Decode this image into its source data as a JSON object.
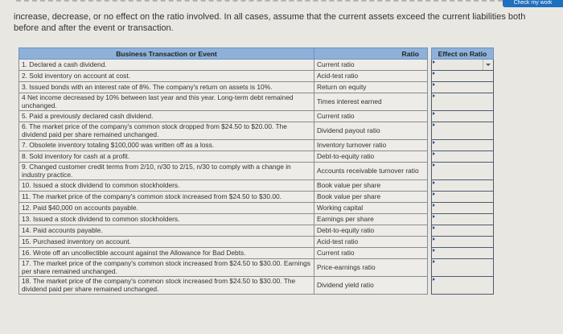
{
  "instructions": {
    "text": "increase, decrease, or no effect on the ratio involved. In all cases, assume that the current assets exceed the current liabilities both before and after the event or transaction."
  },
  "top_button": {
    "label": "Check my work"
  },
  "table": {
    "headers": {
      "event": "Business Transaction or Event",
      "ratio": "Ratio",
      "effect": "Effect on Ratio"
    },
    "rows": [
      {
        "event": "1. Declared a cash dividend.",
        "ratio": "Current ratio",
        "effect": "",
        "tall": false
      },
      {
        "event": "2. Sold inventory on account at cost.",
        "ratio": "Acid-test ratio",
        "effect": "",
        "tall": false
      },
      {
        "event": "3. Issued bonds with an interest rate of 8%. The company's return on assets is 10%.",
        "ratio": "Return on equity",
        "effect": "",
        "tall": false
      },
      {
        "event": "4 Net income decreased by 10% between last year and this year. Long-term debt remained unchanged.",
        "ratio": "Times interest earned",
        "effect": "",
        "tall": true
      },
      {
        "event": "5. Paid a previously declared cash dividend.",
        "ratio": "Current ratio",
        "effect": "",
        "tall": false
      },
      {
        "event": "6. The market price of the company's common stock dropped from $24.50 to $20.00. The dividend paid per share remained unchanged.",
        "ratio": "Dividend payout ratio",
        "effect": "",
        "tall": true
      },
      {
        "event": "7. Obsolete inventory totaling $100,000 was written off as a loss.",
        "ratio": "Inventory turnover ratio",
        "effect": "",
        "tall": false
      },
      {
        "event": "8. Sold inventory for cash at a profit.",
        "ratio": "Debt-to-equity ratio",
        "effect": "",
        "tall": false
      },
      {
        "event": "9. Changed customer credit terms from 2/10, n/30 to 2/15, n/30 to comply with a change in industry practice.",
        "ratio": "Accounts receivable turnover ratio",
        "effect": "",
        "tall": true
      },
      {
        "event": "10. Issued a stock dividend to common stockholders.",
        "ratio": "Book value per share",
        "effect": "",
        "tall": false
      },
      {
        "event": "11. The market price of the company's common stock increased from $24.50 to $30.00.",
        "ratio": "Book value per share",
        "effect": "",
        "tall": false
      },
      {
        "event": "12. Paid $40,000 on accounts payable.",
        "ratio": "Working capital",
        "effect": "",
        "tall": false
      },
      {
        "event": "13. Issued a stock dividend to common stockholders.",
        "ratio": "Earnings per share",
        "effect": "",
        "tall": false
      },
      {
        "event": "14. Paid accounts payable.",
        "ratio": "Debt-to-equity ratio",
        "effect": "",
        "tall": false
      },
      {
        "event": "15. Purchased inventory on account.",
        "ratio": "Acid-test ratio",
        "effect": "",
        "tall": false
      },
      {
        "event": "16. Wrote off an uncollectible account against the Allowance for Bad Debts.",
        "ratio": "Current ratio",
        "effect": "",
        "tall": false
      },
      {
        "event": "17. The market price of the company's common stock increased from $24.50 to $30.00. Earnings per share remained unchanged.",
        "ratio": "Price-earnings ratio",
        "effect": "",
        "tall": true
      },
      {
        "event": "18. The market price of the company's common stock increased from $24.50 to $30.00. The dividend paid per share remained unchanged.",
        "ratio": "Dividend yield ratio",
        "effect": "",
        "tall": true
      }
    ]
  }
}
